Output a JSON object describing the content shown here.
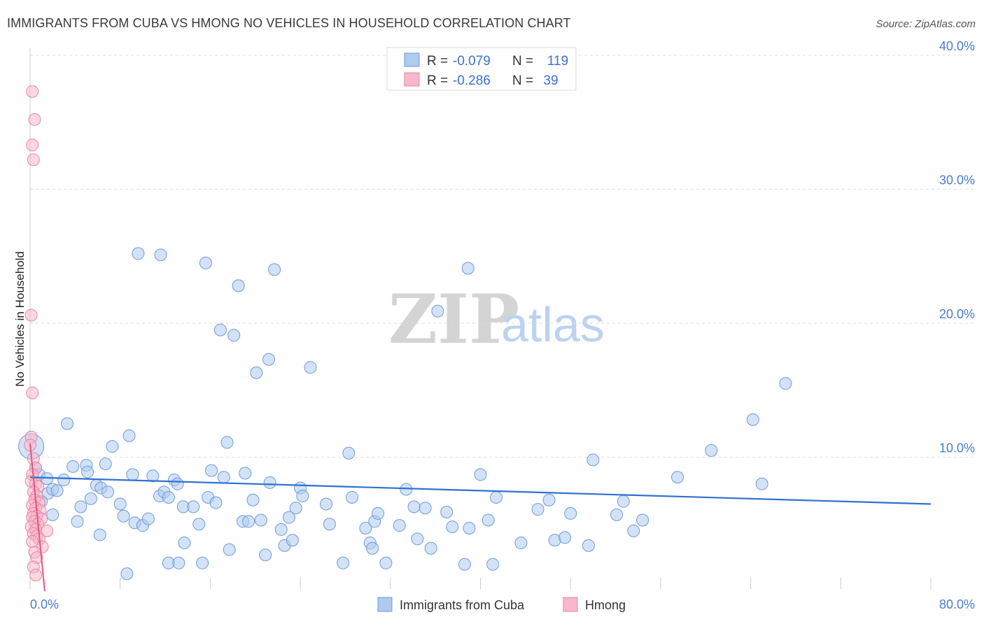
{
  "title": "IMMIGRANTS FROM CUBA VS HMONG NO VEHICLES IN HOUSEHOLD CORRELATION CHART",
  "source": "Source: ZipAtlas.com",
  "watermark": {
    "zip": "ZIP",
    "atlas": "atlas"
  },
  "colors": {
    "blue_fill": "#aecbf0",
    "blue_stroke": "#6f9bd8",
    "blue_line": "#2f72cf",
    "pink_fill": "#f7b8cb",
    "pink_stroke": "#e985a5",
    "pink_line": "#e8557f",
    "grid": "#dddddd",
    "tick_text": "#4a7ccf"
  },
  "legend": {
    "rows": [
      {
        "r_label": "R =",
        "r_value": "-0.079",
        "n_label": "N =",
        "n_value": "119"
      },
      {
        "r_label": "R =",
        "r_value": "-0.286",
        "n_label": "N =",
        "n_value": "39"
      }
    ]
  },
  "bottom_legend": {
    "series1": "Immigrants from Cuba",
    "series2": "Hmong"
  },
  "chart_data": {
    "type": "scatter",
    "title": "IMMIGRANTS FROM CUBA VS HMONG NO VEHICLES IN HOUSEHOLD CORRELATION CHART",
    "xlabel": "",
    "ylabel": "No Vehicles in Household",
    "xlim": [
      0,
      80
    ],
    "ylim": [
      0,
      42
    ],
    "x_tick_labels": [
      {
        "value": 0,
        "label": "0.0%"
      },
      {
        "value": 80,
        "label": "80.0%"
      }
    ],
    "y_tick_labels": [
      {
        "value": 10,
        "label": "10.0%"
      },
      {
        "value": 20,
        "label": "20.0%"
      },
      {
        "value": 30,
        "label": "30.0%"
      },
      {
        "value": 40,
        "label": "40.0%"
      }
    ],
    "series": [
      {
        "name": "Immigrants from Cuba",
        "R": -0.079,
        "N": 119,
        "trend": [
          [
            0,
            8.5
          ],
          [
            80,
            6.5
          ]
        ],
        "points": [
          [
            0.1,
            10.8
          ],
          [
            0.5,
            9.2
          ],
          [
            0.8,
            8.7
          ],
          [
            1.5,
            8.4
          ],
          [
            1.6,
            7.3
          ],
          [
            2.0,
            7.6
          ],
          [
            2.4,
            7.5
          ],
          [
            3.0,
            8.3
          ],
          [
            3.3,
            12.5
          ],
          [
            1.0,
            6.7
          ],
          [
            2.0,
            5.7
          ],
          [
            3.8,
            9.3
          ],
          [
            4.2,
            5.2
          ],
          [
            4.5,
            6.3
          ],
          [
            5.0,
            9.4
          ],
          [
            5.1,
            8.9
          ],
          [
            5.4,
            6.9
          ],
          [
            5.9,
            7.9
          ],
          [
            6.3,
            7.7
          ],
          [
            6.2,
            4.2
          ],
          [
            6.7,
            9.5
          ],
          [
            6.9,
            7.4
          ],
          [
            7.3,
            10.8
          ],
          [
            8.0,
            6.5
          ],
          [
            8.3,
            5.6
          ],
          [
            8.6,
            1.3
          ],
          [
            8.8,
            11.6
          ],
          [
            9.1,
            8.7
          ],
          [
            9.3,
            5.1
          ],
          [
            9.6,
            25.2
          ],
          [
            10.0,
            4.9
          ],
          [
            10.5,
            5.4
          ],
          [
            10.9,
            8.6
          ],
          [
            11.6,
            25.1
          ],
          [
            11.5,
            7.1
          ],
          [
            11.9,
            7.4
          ],
          [
            12.3,
            7.0
          ],
          [
            12.3,
            2.1
          ],
          [
            12.8,
            8.3
          ],
          [
            13.1,
            8.0
          ],
          [
            13.2,
            2.1
          ],
          [
            13.6,
            6.3
          ],
          [
            13.7,
            3.6
          ],
          [
            14.5,
            6.3
          ],
          [
            15.0,
            5.0
          ],
          [
            15.3,
            2.1
          ],
          [
            15.6,
            24.5
          ],
          [
            15.8,
            7.0
          ],
          [
            16.1,
            9.0
          ],
          [
            16.5,
            6.6
          ],
          [
            16.9,
            19.5
          ],
          [
            17.2,
            8.5
          ],
          [
            17.5,
            11.1
          ],
          [
            17.7,
            3.1
          ],
          [
            18.1,
            19.1
          ],
          [
            18.5,
            22.8
          ],
          [
            18.9,
            5.2
          ],
          [
            19.1,
            8.8
          ],
          [
            19.4,
            5.2
          ],
          [
            19.8,
            6.8
          ],
          [
            20.1,
            16.3
          ],
          [
            20.5,
            5.3
          ],
          [
            20.9,
            2.7
          ],
          [
            21.3,
            8.1
          ],
          [
            21.2,
            17.3
          ],
          [
            21.7,
            24.0
          ],
          [
            22.3,
            4.6
          ],
          [
            22.6,
            3.4
          ],
          [
            23.0,
            5.5
          ],
          [
            23.3,
            3.8
          ],
          [
            23.6,
            6.2
          ],
          [
            24.0,
            7.7
          ],
          [
            24.2,
            7.1
          ],
          [
            24.9,
            16.7
          ],
          [
            26.3,
            6.5
          ],
          [
            26.6,
            5.0
          ],
          [
            27.8,
            2.1
          ],
          [
            28.3,
            10.3
          ],
          [
            28.6,
            7.0
          ],
          [
            29.8,
            4.7
          ],
          [
            30.2,
            3.6
          ],
          [
            30.4,
            3.2
          ],
          [
            30.6,
            5.2
          ],
          [
            30.9,
            5.8
          ],
          [
            31.6,
            2.1
          ],
          [
            32.8,
            4.9
          ],
          [
            33.4,
            7.6
          ],
          [
            34.1,
            6.3
          ],
          [
            34.4,
            3.9
          ],
          [
            35.1,
            6.2
          ],
          [
            35.6,
            3.2
          ],
          [
            36.2,
            20.9
          ],
          [
            37.0,
            5.9
          ],
          [
            37.5,
            4.8
          ],
          [
            38.6,
            2.0
          ],
          [
            38.9,
            24.1
          ],
          [
            39.0,
            4.7
          ],
          [
            40.0,
            8.7
          ],
          [
            40.7,
            5.3
          ],
          [
            41.1,
            2.0
          ],
          [
            41.4,
            7.0
          ],
          [
            43.6,
            3.6
          ],
          [
            45.1,
            6.1
          ],
          [
            46.1,
            6.8
          ],
          [
            46.6,
            3.8
          ],
          [
            47.5,
            4.0
          ],
          [
            48.0,
            5.8
          ],
          [
            49.6,
            3.4
          ],
          [
            50.0,
            9.8
          ],
          [
            52.1,
            5.7
          ],
          [
            52.7,
            6.7
          ],
          [
            53.6,
            4.5
          ],
          [
            54.4,
            5.3
          ],
          [
            57.5,
            8.5
          ],
          [
            60.5,
            10.5
          ],
          [
            64.2,
            12.8
          ],
          [
            65.0,
            8.0
          ],
          [
            67.1,
            15.5
          ]
        ]
      },
      {
        "name": "Hmong",
        "R": -0.286,
        "N": 39,
        "trend": [
          [
            0,
            11.0
          ],
          [
            1.3,
            0
          ]
        ],
        "points": [
          [
            0.2,
            37.3
          ],
          [
            0.4,
            35.2
          ],
          [
            0.2,
            33.3
          ],
          [
            0.3,
            32.2
          ],
          [
            0.1,
            20.6
          ],
          [
            0.2,
            14.8
          ],
          [
            0.1,
            11.5
          ],
          [
            0.0,
            10.9
          ],
          [
            0.3,
            9.9
          ],
          [
            0.5,
            9.2
          ],
          [
            0.2,
            8.7
          ],
          [
            0.1,
            8.2
          ],
          [
            0.5,
            8.0
          ],
          [
            0.7,
            7.8
          ],
          [
            0.3,
            7.4
          ],
          [
            0.6,
            7.1
          ],
          [
            0.4,
            6.8
          ],
          [
            0.8,
            6.6
          ],
          [
            0.2,
            6.4
          ],
          [
            0.5,
            6.2
          ],
          [
            0.9,
            6.0
          ],
          [
            0.3,
            5.8
          ],
          [
            0.6,
            5.6
          ],
          [
            0.2,
            5.5
          ],
          [
            1.0,
            5.4
          ],
          [
            0.4,
            5.2
          ],
          [
            0.7,
            5.0
          ],
          [
            0.1,
            4.8
          ],
          [
            0.5,
            4.6
          ],
          [
            1.5,
            4.5
          ],
          [
            0.3,
            4.3
          ],
          [
            0.6,
            4.1
          ],
          [
            0.8,
            3.9
          ],
          [
            0.2,
            3.7
          ],
          [
            1.1,
            3.3
          ],
          [
            0.4,
            2.9
          ],
          [
            0.6,
            2.5
          ],
          [
            0.3,
            1.8
          ],
          [
            0.5,
            1.2
          ]
        ]
      }
    ]
  }
}
